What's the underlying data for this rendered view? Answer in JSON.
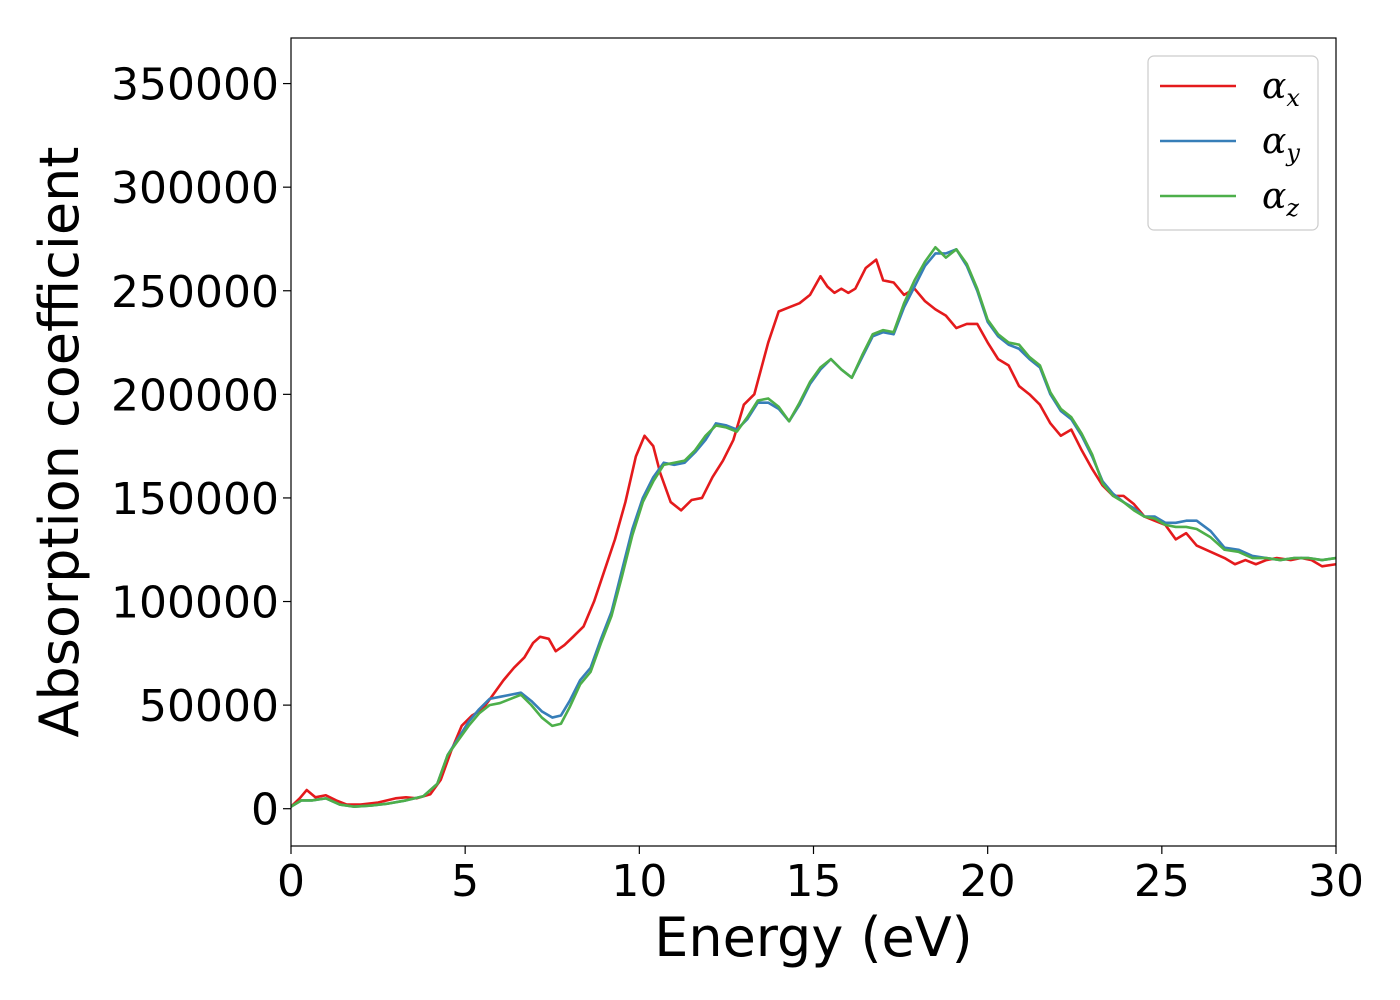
{
  "chart_data": {
    "type": "line",
    "title": "",
    "xlabel": "Energy (eV)",
    "ylabel": "Absorption coefficient",
    "xlim": [
      0,
      30
    ],
    "ylim": [
      -18000,
      372000
    ],
    "xticks": [
      0,
      5,
      10,
      15,
      20,
      25,
      30
    ],
    "yticks": [
      0,
      50000,
      100000,
      150000,
      200000,
      250000,
      300000,
      350000
    ],
    "xtick_labels": [
      "0",
      "5",
      "10",
      "15",
      "20",
      "25",
      "30"
    ],
    "ytick_labels": [
      "0",
      "50000",
      "100000",
      "150000",
      "200000",
      "250000",
      "300000",
      "350000"
    ],
    "grid": false,
    "legend_position": "top-right",
    "series": [
      {
        "name": "αx",
        "base": "α",
        "sub": "x",
        "color": "#e41a1c",
        "x": [
          0,
          0.25,
          0.45,
          0.7,
          1.0,
          1.3,
          1.6,
          2.0,
          2.5,
          3.0,
          3.3,
          3.6,
          4.0,
          4.3,
          4.6,
          4.9,
          5.2,
          5.5,
          5.8,
          6.1,
          6.4,
          6.7,
          6.95,
          7.15,
          7.4,
          7.6,
          7.85,
          8.1,
          8.4,
          8.7,
          9.0,
          9.3,
          9.6,
          9.9,
          10.15,
          10.4,
          10.6,
          10.9,
          11.2,
          11.5,
          11.8,
          12.1,
          12.4,
          12.7,
          13.0,
          13.3,
          13.7,
          14.0,
          14.3,
          14.6,
          14.9,
          15.2,
          15.4,
          15.6,
          15.8,
          16.0,
          16.2,
          16.5,
          16.8,
          17.0,
          17.3,
          17.6,
          17.9,
          18.2,
          18.5,
          18.8,
          19.1,
          19.4,
          19.7,
          20.0,
          20.3,
          20.6,
          20.9,
          21.2,
          21.5,
          21.8,
          22.1,
          22.4,
          22.7,
          23.0,
          23.3,
          23.6,
          23.9,
          24.2,
          24.5,
          24.8,
          25.1,
          25.4,
          25.7,
          26.0,
          26.4,
          26.8,
          27.1,
          27.4,
          27.7,
          28.0,
          28.3,
          28.7,
          29.0,
          29.3,
          29.6,
          30.0
        ],
        "y": [
          1000,
          5000,
          9000,
          5500,
          6500,
          4000,
          2000,
          2000,
          3000,
          5000,
          5500,
          5000,
          7000,
          14000,
          28000,
          40000,
          45000,
          48000,
          55000,
          62000,
          68000,
          73000,
          80000,
          83000,
          82000,
          76000,
          79000,
          83000,
          88000,
          100000,
          115000,
          130000,
          148000,
          170000,
          180000,
          175000,
          162000,
          148000,
          144000,
          149000,
          150000,
          160000,
          168000,
          178000,
          195000,
          200000,
          225000,
          240000,
          242000,
          244000,
          248000,
          257000,
          252000,
          249000,
          251000,
          249000,
          251000,
          261000,
          265000,
          255000,
          254000,
          248000,
          251000,
          245000,
          241000,
          238000,
          232000,
          234000,
          234000,
          225000,
          217000,
          214000,
          204000,
          200000,
          195000,
          186000,
          180000,
          183000,
          173000,
          164000,
          156000,
          151000,
          151000,
          147000,
          141000,
          139000,
          137000,
          130000,
          133000,
          127000,
          124000,
          121000,
          118000,
          120000,
          118000,
          120000,
          121000,
          120000,
          121000,
          120000,
          117000,
          118000
        ]
      },
      {
        "name": "αy",
        "base": "α",
        "sub": "y",
        "color": "#377eb8",
        "x": [
          0,
          0.3,
          0.6,
          1.0,
          1.4,
          1.8,
          2.3,
          2.8,
          3.3,
          3.8,
          4.2,
          4.5,
          4.8,
          5.1,
          5.4,
          5.7,
          6.0,
          6.3,
          6.6,
          6.9,
          7.2,
          7.5,
          7.75,
          8.0,
          8.3,
          8.6,
          8.9,
          9.2,
          9.5,
          9.8,
          10.1,
          10.4,
          10.7,
          11.0,
          11.3,
          11.6,
          11.9,
          12.2,
          12.5,
          12.8,
          13.1,
          13.4,
          13.7,
          14.0,
          14.3,
          14.6,
          14.9,
          15.2,
          15.5,
          15.8,
          16.1,
          16.4,
          16.7,
          17.0,
          17.3,
          17.6,
          17.9,
          18.2,
          18.5,
          18.8,
          19.1,
          19.4,
          19.7,
          20.0,
          20.3,
          20.6,
          20.9,
          21.2,
          21.5,
          21.8,
          22.1,
          22.4,
          22.7,
          23.0,
          23.3,
          23.6,
          23.9,
          24.2,
          24.5,
          24.8,
          25.1,
          25.4,
          25.7,
          26.0,
          26.4,
          26.8,
          27.2,
          27.6,
          28.0,
          28.4,
          28.8,
          29.2,
          29.6,
          30.0
        ],
        "y": [
          1000,
          4000,
          4000,
          5000,
          2000,
          1000,
          1500,
          2500,
          4000,
          6000,
          12000,
          26000,
          34000,
          42000,
          48000,
          53000,
          54000,
          55000,
          56000,
          52000,
          47000,
          44000,
          45000,
          52000,
          62000,
          68000,
          82000,
          95000,
          115000,
          135000,
          150000,
          160000,
          167000,
          166000,
          167000,
          172000,
          178000,
          186000,
          185000,
          183000,
          188000,
          196000,
          196000,
          193000,
          187000,
          195000,
          205000,
          212000,
          217000,
          212000,
          208000,
          218000,
          228000,
          230000,
          229000,
          242000,
          252000,
          262000,
          268000,
          268000,
          270000,
          262000,
          250000,
          235000,
          228000,
          224000,
          222000,
          217000,
          213000,
          200000,
          192000,
          188000,
          180000,
          170000,
          158000,
          152000,
          148000,
          145000,
          141000,
          141000,
          138000,
          138000,
          139000,
          139000,
          134000,
          126000,
          125000,
          122000,
          121000,
          120000,
          121000,
          121000,
          120000,
          121000
        ]
      },
      {
        "name": "αz",
        "base": "α",
        "sub": "z",
        "color": "#4daf4a",
        "x": [
          0,
          0.3,
          0.6,
          1.0,
          1.4,
          1.8,
          2.3,
          2.8,
          3.3,
          3.8,
          4.2,
          4.5,
          4.8,
          5.1,
          5.4,
          5.7,
          6.0,
          6.3,
          6.6,
          6.9,
          7.2,
          7.5,
          7.75,
          8.0,
          8.3,
          8.6,
          8.9,
          9.2,
          9.5,
          9.8,
          10.1,
          10.4,
          10.7,
          11.0,
          11.3,
          11.6,
          11.9,
          12.2,
          12.5,
          12.8,
          13.1,
          13.4,
          13.7,
          14.0,
          14.3,
          14.6,
          14.9,
          15.2,
          15.5,
          15.8,
          16.1,
          16.4,
          16.7,
          17.0,
          17.3,
          17.6,
          17.9,
          18.2,
          18.5,
          18.8,
          19.1,
          19.4,
          19.7,
          20.0,
          20.3,
          20.6,
          20.9,
          21.2,
          21.5,
          21.8,
          22.1,
          22.4,
          22.7,
          23.0,
          23.3,
          23.6,
          23.9,
          24.2,
          24.5,
          24.8,
          25.1,
          25.4,
          25.7,
          26.0,
          26.4,
          26.8,
          27.2,
          27.6,
          28.0,
          28.4,
          28.8,
          29.2,
          29.6,
          30.0
        ],
        "y": [
          1000,
          4000,
          4000,
          5000,
          2000,
          1000,
          1500,
          2500,
          4000,
          6000,
          12000,
          26000,
          33000,
          40000,
          46000,
          50000,
          51000,
          53000,
          55000,
          50000,
          44000,
          40000,
          41000,
          49000,
          60000,
          66000,
          80000,
          93000,
          112000,
          132000,
          148000,
          158000,
          166000,
          167000,
          168000,
          173000,
          180000,
          185000,
          184000,
          182000,
          189000,
          197000,
          198000,
          194000,
          187000,
          196000,
          206000,
          213000,
          217000,
          212000,
          208000,
          219000,
          229000,
          231000,
          230000,
          244000,
          255000,
          264000,
          271000,
          266000,
          270000,
          263000,
          251000,
          236000,
          229000,
          225000,
          224000,
          218000,
          214000,
          201000,
          193000,
          189000,
          181000,
          171000,
          157000,
          151000,
          148000,
          144000,
          141000,
          140000,
          137000,
          136000,
          136000,
          135000,
          131000,
          125000,
          124000,
          121000,
          121000,
          120000,
          121000,
          121000,
          120000,
          121000
        ]
      }
    ]
  }
}
